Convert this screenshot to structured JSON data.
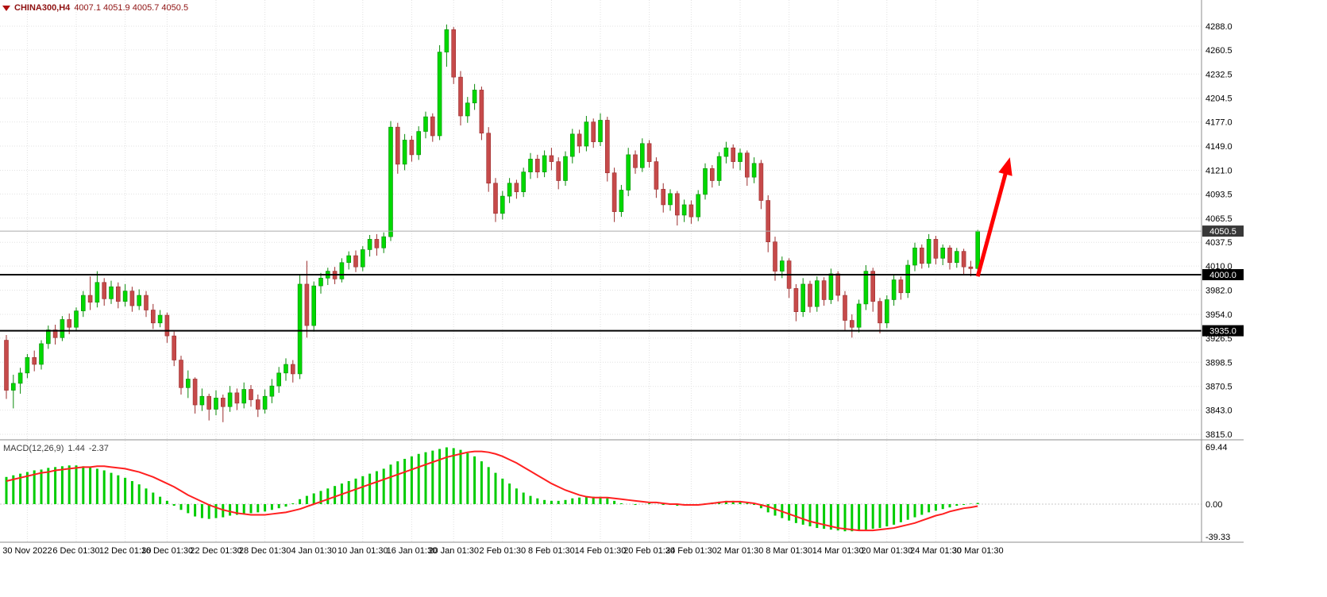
{
  "info_line": {
    "symbol_period": "CHINA300,H4",
    "ohlc": "4007.1 4051.9 4005.7 4050.5"
  },
  "macd_panel": {
    "label": "MACD(12,26,9)",
    "value_main": "1.44",
    "value_signal": "-2.37"
  },
  "price_axis": {
    "ticks": [
      "4288.0",
      "4260.5",
      "4232.5",
      "4204.5",
      "4177.0",
      "4149.0",
      "4121.0",
      "4093.5",
      "4065.5",
      "4037.5",
      "4010.0",
      "3982.0",
      "3954.0",
      "3926.5",
      "3898.5",
      "3870.5",
      "3843.0",
      "3815.0"
    ],
    "current_price": 4050.5,
    "current_price_label": "4050.5"
  },
  "macd_axis": {
    "ticks": [
      "69.44",
      "0.00",
      "-39.33"
    ],
    "max": 69.44,
    "min": -39.33
  },
  "levels": [
    {
      "price": 4000.0,
      "label": "4000.0"
    },
    {
      "price": 3935.0,
      "label": "3935.0"
    }
  ],
  "annotation_arrow": {
    "from_candle": 139,
    "from_price": 3998,
    "to_candle": 143.6,
    "to_price": 4136,
    "color": "#FF0000",
    "width": 5
  },
  "colors": {
    "background": "#FFFFFF",
    "up": "#00D800",
    "up_border": "#0A8A0A",
    "down": "#C64A4A",
    "down_border": "#9B2D2D",
    "hist": "#00CC00",
    "signal_line": "#FF2020",
    "grid": "#E2E2E2",
    "separator": "#8C8C8C",
    "level_line": "#000000",
    "price_line": "#ABABAB",
    "badge_bg": "#000000",
    "current_badge_bg": "#383838",
    "badge_text": "#FFFFFF",
    "axis_text": "#000000",
    "info_text": "#8E1111",
    "arrow": "#FF0000"
  },
  "chart_data": {
    "type": "candlestick",
    "symbol": "CHINA300",
    "timeframe": "H4",
    "title": "CHINA300,H4 4007.1 4051.9 4005.7 4050.5",
    "ylim": [
      3815,
      4288
    ],
    "grid": true,
    "x_labels": [
      {
        "i": 3,
        "t": "30 Nov 2022"
      },
      {
        "i": 10,
        "t": "6 Dec 01:30"
      },
      {
        "i": 17,
        "t": "12 Dec 01:30"
      },
      {
        "i": 23,
        "t": "16 Dec 01:30"
      },
      {
        "i": 30,
        "t": "22 Dec 01:30"
      },
      {
        "i": 37,
        "t": "28 Dec 01:30"
      },
      {
        "i": 44,
        "t": "4 Jan 01:30"
      },
      {
        "i": 51,
        "t": "10 Jan 01:30"
      },
      {
        "i": 58,
        "t": "16 Jan 01:30"
      },
      {
        "i": 64,
        "t": "20 Jan 01:30"
      },
      {
        "i": 71,
        "t": "2 Feb 01:30"
      },
      {
        "i": 78,
        "t": "8 Feb 01:30"
      },
      {
        "i": 85,
        "t": "14 Feb 01:30"
      },
      {
        "i": 92,
        "t": "20 Feb 01:30"
      },
      {
        "i": 98,
        "t": "24 Feb 01:30"
      },
      {
        "i": 105,
        "t": "2 Mar 01:30"
      },
      {
        "i": 112,
        "t": "8 Mar 01:30"
      },
      {
        "i": 119,
        "t": "14 Mar 01:30"
      },
      {
        "i": 126,
        "t": "20 Mar 01:30"
      },
      {
        "i": 133,
        "t": "24 Mar 01:30"
      },
      {
        "i": 139,
        "t": "30 Mar 01:30"
      }
    ],
    "candles": [
      [
        3924,
        3930,
        3856,
        3866
      ],
      [
        3866,
        3884,
        3845,
        3874
      ],
      [
        3874,
        3892,
        3862,
        3886
      ],
      [
        3886,
        3908,
        3880,
        3904
      ],
      [
        3904,
        3912,
        3888,
        3896
      ],
      [
        3896,
        3924,
        3890,
        3920
      ],
      [
        3920,
        3941,
        3914,
        3936
      ],
      [
        3936,
        3942,
        3919,
        3927
      ],
      [
        3927,
        3952,
        3923,
        3948
      ],
      [
        3948,
        3955,
        3931,
        3939
      ],
      [
        3939,
        3962,
        3935,
        3958
      ],
      [
        3958,
        3981,
        3951,
        3976
      ],
      [
        3976,
        3998,
        3959,
        3968
      ],
      [
        3968,
        4004,
        3962,
        3991
      ],
      [
        3991,
        3996,
        3964,
        3972
      ],
      [
        3972,
        3993,
        3966,
        3986
      ],
      [
        3986,
        3991,
        3961,
        3969
      ],
      [
        3969,
        3989,
        3963,
        3981
      ],
      [
        3981,
        3986,
        3957,
        3964
      ],
      [
        3964,
        3983,
        3959,
        3976
      ],
      [
        3976,
        3981,
        3951,
        3959
      ],
      [
        3959,
        3966,
        3937,
        3944
      ],
      [
        3944,
        3959,
        3939,
        3953
      ],
      [
        3953,
        3956,
        3921,
        3929
      ],
      [
        3929,
        3934,
        3894,
        3901
      ],
      [
        3901,
        3906,
        3861,
        3869
      ],
      [
        3869,
        3889,
        3857,
        3879
      ],
      [
        3879,
        3881,
        3839,
        3849
      ],
      [
        3849,
        3868,
        3842,
        3859
      ],
      [
        3859,
        3862,
        3831,
        3844
      ],
      [
        3844,
        3866,
        3837,
        3857
      ],
      [
        3857,
        3861,
        3829,
        3847
      ],
      [
        3847,
        3871,
        3841,
        3863
      ],
      [
        3863,
        3868,
        3843,
        3851
      ],
      [
        3851,
        3875,
        3845,
        3867
      ],
      [
        3867,
        3872,
        3847,
        3855
      ],
      [
        3855,
        3861,
        3835,
        3844
      ],
      [
        3844,
        3867,
        3839,
        3859
      ],
      [
        3859,
        3879,
        3851,
        3871
      ],
      [
        3871,
        3893,
        3863,
        3886
      ],
      [
        3886,
        3903,
        3877,
        3896
      ],
      [
        3896,
        3901,
        3875,
        3885
      ],
      [
        3885,
        3999,
        3879,
        3989
      ],
      [
        3989,
        4016,
        3927,
        3941
      ],
      [
        3941,
        3992,
        3934,
        3987
      ],
      [
        3987,
        4002,
        3978,
        3996
      ],
      [
        3996,
        4008,
        3988,
        4004
      ],
      [
        4004,
        4009,
        3989,
        3995
      ],
      [
        3995,
        4019,
        3991,
        4014
      ],
      [
        4014,
        4027,
        4006,
        4022
      ],
      [
        4022,
        4028,
        4003,
        4009
      ],
      [
        4009,
        4033,
        4004,
        4029
      ],
      [
        4029,
        4046,
        4021,
        4041
      ],
      [
        4041,
        4047,
        4022,
        4031
      ],
      [
        4031,
        4049,
        4025,
        4044
      ],
      [
        4044,
        4178,
        4039,
        4171
      ],
      [
        4171,
        4176,
        4117,
        4128
      ],
      [
        4128,
        4163,
        4121,
        4156
      ],
      [
        4156,
        4161,
        4131,
        4139
      ],
      [
        4139,
        4172,
        4133,
        4166
      ],
      [
        4166,
        4189,
        4158,
        4183
      ],
      [
        4183,
        4187,
        4154,
        4161
      ],
      [
        4161,
        4266,
        4156,
        4258
      ],
      [
        4258,
        4290,
        4241,
        4284
      ],
      [
        4284,
        4287,
        4221,
        4229
      ],
      [
        4229,
        4236,
        4173,
        4184
      ],
      [
        4184,
        4206,
        4176,
        4199
      ],
      [
        4199,
        4221,
        4191,
        4214
      ],
      [
        4214,
        4218,
        4156,
        4164
      ],
      [
        4164,
        4171,
        4096,
        4106
      ],
      [
        4106,
        4112,
        4061,
        4071
      ],
      [
        4071,
        4097,
        4064,
        4091
      ],
      [
        4091,
        4112,
        4083,
        4106
      ],
      [
        4106,
        4110,
        4088,
        4096
      ],
      [
        4096,
        4124,
        4090,
        4119
      ],
      [
        4119,
        4141,
        4111,
        4134
      ],
      [
        4134,
        4139,
        4112,
        4119
      ],
      [
        4119,
        4144,
        4113,
        4138
      ],
      [
        4138,
        4147,
        4121,
        4131
      ],
      [
        4131,
        4136,
        4099,
        4109
      ],
      [
        4109,
        4143,
        4103,
        4137
      ],
      [
        4137,
        4169,
        4129,
        4163
      ],
      [
        4163,
        4168,
        4141,
        4149
      ],
      [
        4149,
        4184,
        4143,
        4177
      ],
      [
        4177,
        4181,
        4147,
        4154
      ],
      [
        4154,
        4187,
        4149,
        4179
      ],
      [
        4179,
        4183,
        4108,
        4118
      ],
      [
        4118,
        4124,
        4061,
        4073
      ],
      [
        4073,
        4104,
        4067,
        4098
      ],
      [
        4098,
        4147,
        4091,
        4139
      ],
      [
        4139,
        4144,
        4117,
        4124
      ],
      [
        4124,
        4158,
        4119,
        4152
      ],
      [
        4152,
        4156,
        4124,
        4131
      ],
      [
        4131,
        4136,
        4089,
        4099
      ],
      [
        4099,
        4106,
        4072,
        4081
      ],
      [
        4081,
        4099,
        4074,
        4094
      ],
      [
        4094,
        4097,
        4057,
        4069
      ],
      [
        4069,
        4087,
        4061,
        4081
      ],
      [
        4081,
        4086,
        4059,
        4067
      ],
      [
        4067,
        4098,
        4062,
        4093
      ],
      [
        4093,
        4129,
        4087,
        4123
      ],
      [
        4123,
        4127,
        4101,
        4109
      ],
      [
        4109,
        4142,
        4103,
        4137
      ],
      [
        4137,
        4154,
        4129,
        4147
      ],
      [
        4147,
        4151,
        4123,
        4131
      ],
      [
        4131,
        4146,
        4121,
        4141
      ],
      [
        4141,
        4144,
        4103,
        4113
      ],
      [
        4113,
        4136,
        4106,
        4129
      ],
      [
        4129,
        4133,
        4076,
        4086
      ],
      [
        4086,
        4092,
        4026,
        4038
      ],
      [
        4038,
        4044,
        3993,
        4004
      ],
      [
        4004,
        4021,
        3996,
        4016
      ],
      [
        4016,
        4019,
        3973,
        3984
      ],
      [
        3984,
        3989,
        3946,
        3957
      ],
      [
        3957,
        3996,
        3951,
        3989
      ],
      [
        3989,
        3993,
        3956,
        3963
      ],
      [
        3963,
        3998,
        3957,
        3993
      ],
      [
        3993,
        3997,
        3964,
        3971
      ],
      [
        3971,
        4007,
        3966,
        4001
      ],
      [
        4001,
        4004,
        3969,
        3976
      ],
      [
        3976,
        3981,
        3936,
        3947
      ],
      [
        3947,
        3954,
        3927,
        3939
      ],
      [
        3939,
        3971,
        3933,
        3966
      ],
      [
        3966,
        4011,
        3959,
        4004
      ],
      [
        4004,
        4008,
        3957,
        3969
      ],
      [
        3969,
        3973,
        3932,
        3944
      ],
      [
        3944,
        3976,
        3938,
        3971
      ],
      [
        3971,
        3999,
        3964,
        3994
      ],
      [
        3994,
        3998,
        3971,
        3979
      ],
      [
        3979,
        4017,
        3973,
        4011
      ],
      [
        4011,
        4037,
        4004,
        4031
      ],
      [
        4031,
        4035,
        4007,
        4013
      ],
      [
        4013,
        4047,
        4008,
        4041
      ],
      [
        4041,
        4045,
        4012,
        4019
      ],
      [
        4019,
        4035,
        4011,
        4031
      ],
      [
        4031,
        4034,
        4006,
        4014
      ],
      [
        4014,
        4031,
        4008,
        4027
      ],
      [
        4027,
        4030,
        4000,
        4009
      ],
      [
        4009,
        4016,
        3998,
        4007
      ],
      [
        4007.1,
        4051.9,
        4005.7,
        4050.5
      ]
    ],
    "indicator": {
      "name": "MACD",
      "params": "12,26,9",
      "ylim": [
        -39.33,
        69.44
      ],
      "histogram": [
        33,
        35,
        37,
        39,
        41,
        42,
        44,
        45,
        46,
        47,
        47,
        46,
        45,
        43,
        41,
        38,
        35,
        32,
        28,
        24,
        19,
        14,
        9,
        4,
        -2,
        -7,
        -11,
        -15,
        -17,
        -18,
        -17,
        -16,
        -14,
        -13,
        -12,
        -11,
        -10,
        -9,
        -7,
        -5,
        -3,
        1,
        6,
        10,
        13,
        16,
        19,
        22,
        25,
        28,
        31,
        34,
        37,
        40,
        43,
        48,
        52,
        55,
        58,
        61,
        63,
        65,
        67,
        69,
        68,
        66,
        62,
        58,
        52,
        45,
        38,
        31,
        25,
        19,
        14,
        10,
        7,
        5,
        4,
        4,
        5,
        7,
        8,
        9,
        9,
        9,
        7,
        4,
        1,
        0,
        -1,
        0,
        1,
        0,
        -1,
        -1,
        -2,
        -1,
        -1,
        0,
        1,
        2,
        3,
        4,
        4,
        3,
        1,
        -1,
        -5,
        -10,
        -14,
        -17,
        -20,
        -23,
        -25,
        -27,
        -29,
        -30,
        -31,
        -32,
        -33,
        -33,
        -32,
        -31,
        -30,
        -29,
        -27,
        -25,
        -22,
        -19,
        -16,
        -13,
        -10,
        -8,
        -6,
        -4,
        -2,
        -1,
        0.5,
        1.44
      ],
      "signal": [
        28,
        30,
        32,
        34,
        36,
        38,
        39,
        41,
        42,
        43,
        44,
        45,
        45,
        46,
        46,
        45,
        44,
        43,
        41,
        39,
        36,
        33,
        29,
        25,
        21,
        16,
        11,
        7,
        3,
        -1,
        -4,
        -7,
        -9,
        -11,
        -12,
        -13,
        -13,
        -13,
        -12,
        -11,
        -10,
        -8,
        -6,
        -3,
        0,
        3,
        6,
        9,
        12,
        15,
        18,
        21,
        24,
        27,
        30,
        33,
        36,
        39,
        42,
        45,
        48,
        51,
        54,
        57,
        59,
        61,
        63,
        64,
        64,
        63,
        61,
        58,
        54,
        50,
        45,
        40,
        35,
        30,
        25,
        21,
        17,
        14,
        11,
        9,
        8,
        8,
        8,
        7,
        6,
        5,
        4,
        3,
        2,
        2,
        1,
        0,
        0,
        -1,
        -1,
        -1,
        0,
        1,
        2,
        3,
        3,
        3,
        2,
        1,
        -1,
        -3,
        -6,
        -9,
        -12,
        -15,
        -18,
        -21,
        -23,
        -25,
        -27,
        -29,
        -30,
        -31,
        -32,
        -32,
        -32,
        -31,
        -30,
        -29,
        -27,
        -25,
        -23,
        -20,
        -17,
        -14,
        -12,
        -9,
        -7,
        -5,
        -4,
        -2.37
      ]
    }
  }
}
